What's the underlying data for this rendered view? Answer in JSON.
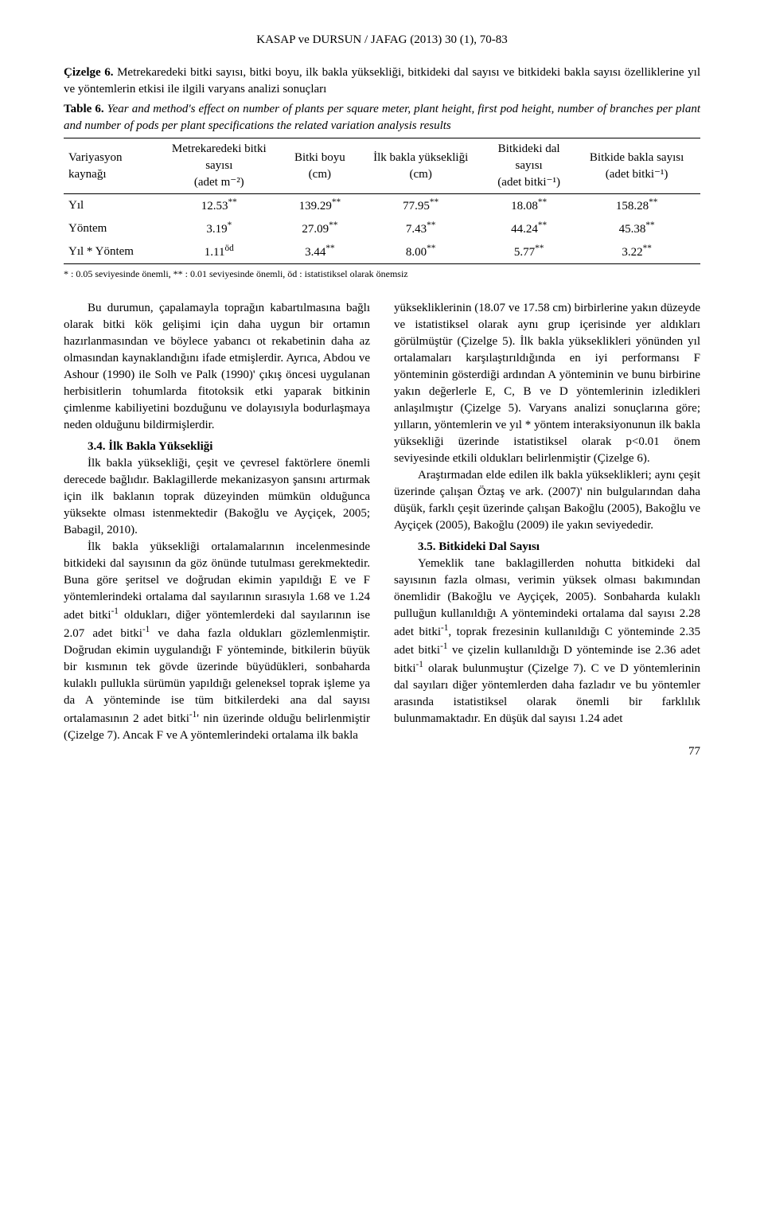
{
  "running_header": "KASAP ve DURSUN / JAFAG (2013) 30 (1), 70-83",
  "caption_tr_label": "Çizelge 6.",
  "caption_tr_text": " Metrekaredeki bitki sayısı, bitki boyu, ilk bakla yüksekliği, bitkideki dal sayısı ve bitkideki bakla sayısı özelliklerine yıl ve yöntemlerin etkisi ile ilgili varyans analizi sonuçları",
  "caption_en_label": "Table 6.",
  "caption_en_text": " Year and method's effect on number of plants per square meter, plant height, first pod height, number of branches per plant and number of pods per plant specifications the related variation analysis results",
  "table": {
    "headers": [
      {
        "h1": "Variyasyon",
        "h2": "kaynağı"
      },
      {
        "h1": "Metrekaredeki bitki",
        "h2": "sayısı",
        "h3": "(adet m⁻²)"
      },
      {
        "h1": "Bitki boyu",
        "h2": "(cm)"
      },
      {
        "h1": "İlk bakla yüksekliği",
        "h2": "(cm)"
      },
      {
        "h1": "Bitkideki dal",
        "h2": "sayısı",
        "h3": "(adet bitki⁻¹)"
      },
      {
        "h1": "Bitkide bakla sayısı",
        "h2": "(adet bitki⁻¹)"
      }
    ],
    "rows": [
      {
        "label": "Yıl",
        "c1": "12.53",
        "s1": "**",
        "c2": "139.29",
        "s2": "**",
        "c3": "77.95",
        "s3": "**",
        "c4": "18.08",
        "s4": "**",
        "c5": "158.28",
        "s5": "**"
      },
      {
        "label": "Yöntem",
        "c1": "3.19",
        "s1": "*",
        "c2": "27.09",
        "s2": "**",
        "c3": "7.43",
        "s3": "**",
        "c4": "44.24",
        "s4": "**",
        "c5": "45.38",
        "s5": "**"
      },
      {
        "label": "Yıl * Yöntem",
        "c1": "1.11",
        "s1": "öd",
        "c2": "3.44",
        "s2": "**",
        "c3": "8.00",
        "s3": "**",
        "c4": "5.77",
        "s4": "**",
        "c5": "3.22",
        "s5": "**"
      }
    ],
    "note": "* : 0.05 seviyesinde önemli, ** : 0.01 seviyesinde önemli, öd : istatistiksel olarak önemsiz"
  },
  "left_col": {
    "p1": "Bu durumun, çapalamayla toprağın kabartılmasına bağlı olarak bitki kök gelişimi için daha uygun bir ortamın hazırlanmasından ve böylece yabancı ot rekabetinin daha az olmasından kaynaklandığını ifade etmişlerdir. Ayrıca, Abdou ve Ashour (1990) ile Solh ve Palk (1990)' çıkış öncesi uygulanan herbisitlerin tohumlarda fitotoksik etki yaparak bitkinin çimlenme kabiliyetini bozduğunu ve dolayısıyla bodurlaşmaya neden olduğunu bildirmişlerdir.",
    "h1": "3.4. İlk Bakla Yüksekliği",
    "p2": "İlk bakla yüksekliği, çeşit ve çevresel faktörlere önemli derecede bağlıdır. Baklagillerde mekanizasyon şansını artırmak için ilk baklanın toprak düzeyinden mümkün olduğunca yüksekte olması istenmektedir (Bakoğlu ve Ayçiçek, 2005; Babagil, 2010).",
    "p3a": "İlk bakla yüksekliği ortalamalarının incelenmesinde bitkideki dal sayısının da göz önünde tutulması gerekmektedir. Buna göre şeritsel ve doğrudan ekimin yapıldığı E ve F yöntemlerindeki ortalama dal sayılarının sırasıyla 1.68 ve 1.24 adet bitki",
    "p3sup1": "-1",
    "p3b": " oldukları, diğer yöntemlerdeki dal sayılarının ise 2.07 adet bitki",
    "p3sup2": "-1",
    "p3c": " ve daha fazla oldukları gözlemlenmiştir. Doğrudan ekimin uygulandığı F yönteminde, bitkilerin büyük bir kısmının tek gövde üzerinde büyüdükleri, sonbaharda kulaklı pullukla sürümün yapıldığı geleneksel toprak işleme ya da A yönteminde ise tüm bitkilerdeki ana dal sayısı ortalamasının 2 adet bitki",
    "p3sup3": "-1",
    "p3d": "' nin üzerinde olduğu belirlenmiştir (Çizelge 7). Ancak F ve A yöntemlerindeki ortalama ilk bakla"
  },
  "right_col": {
    "p1": "yüksekliklerinin (18.07 ve 17.58 cm) birbirlerine yakın düzeyde ve istatistiksel olarak aynı grup içerisinde yer aldıkları görülmüştür (Çizelge 5). İlk bakla yükseklikleri yönünden yıl ortalamaları karşılaştırıldığında en iyi performansı F yönteminin gösterdiği ardından A yönteminin ve bunu birbirine yakın değerlerle E, C, B ve D yöntemlerinin izledikleri anlaşılmıştır (Çizelge 5). Varyans analizi sonuçlarına göre; yılların, yöntemlerin ve yıl * yöntem interaksiyonunun ilk bakla yüksekliği üzerinde istatistiksel olarak p<0.01 önem seviyesinde etkili oldukları belirlenmiştir (Çizelge 6).",
    "p2": "Araştırmadan elde edilen ilk bakla yükseklikleri; aynı çeşit üzerinde çalışan Öztaş ve ark. (2007)' nin bulgularından daha düşük, farklı çeşit üzerinde çalışan Bakoğlu (2005), Bakoğlu ve Ayçiçek (2005), Bakoğlu (2009) ile yakın seviyededir.",
    "h1": "3.5. Bitkideki Dal Sayısı",
    "p3a": "Yemeklik tane baklagillerden nohutta bitkideki dal sayısının fazla olması, verimin yüksek olması bakımından önemlidir (Bakoğlu ve Ayçiçek, 2005). Sonbaharda kulaklı pulluğun kullanıldığı A yöntemindeki ortalama dal sayısı 2.28 adet bitki",
    "p3sup1": "-1",
    "p3b": ", toprak frezesinin kullanıldığı C yönteminde 2.35 adet bitki",
    "p3sup2": "-1",
    "p3c": " ve çizelin kullanıldığı D yönteminde ise 2.36 adet bitki",
    "p3sup3": "-1",
    "p3d": " olarak bulunmuştur (Çizelge 7). C ve D yöntemlerinin dal sayıları diğer yöntemlerden daha fazladır ve bu yöntemler arasında istatistiksel olarak önemli bir farklılık bulunmamaktadır. En düşük dal sayısı 1.24 adet"
  },
  "page_number": "77"
}
